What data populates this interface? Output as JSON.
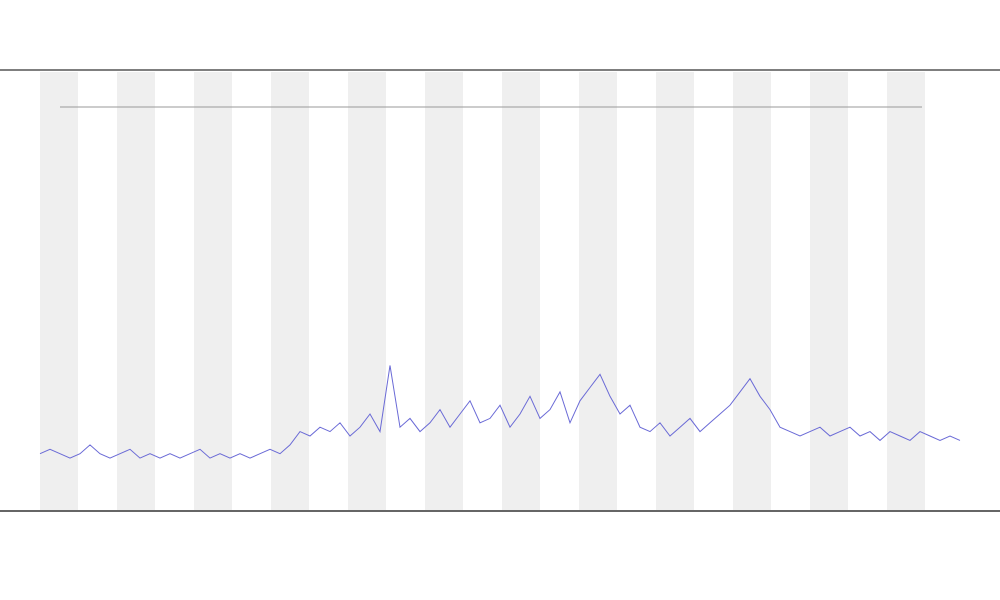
{
  "chart_data": {
    "type": "line",
    "color": "#6a6ad6",
    "values": [
      13,
      14,
      13,
      12,
      13,
      15,
      13,
      12,
      13,
      14,
      12,
      13,
      12,
      13,
      12,
      13,
      14,
      12,
      13,
      12,
      13,
      12,
      13,
      14,
      13,
      15,
      18,
      17,
      19,
      18,
      20,
      17,
      19,
      22,
      18,
      33,
      19,
      21,
      18,
      20,
      23,
      19,
      22,
      25,
      20,
      21,
      24,
      19,
      22,
      26,
      21,
      23,
      27,
      20,
      25,
      28,
      31,
      26,
      22,
      24,
      19,
      18,
      20,
      17,
      19,
      21,
      18,
      20,
      22,
      24,
      27,
      30,
      26,
      23,
      19,
      18,
      17,
      18,
      19,
      17,
      18,
      19,
      17,
      18,
      16,
      18,
      17,
      16,
      18,
      17,
      16,
      17,
      16
    ],
    "ylim": [
      0,
      100
    ]
  }
}
